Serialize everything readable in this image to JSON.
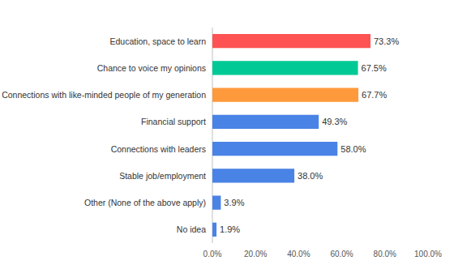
{
  "chart_data": {
    "type": "bar",
    "orientation": "horizontal",
    "categories": [
      "Education, space to learn",
      "Chance to voice my opinions",
      "Connections with like-minded people of my generation",
      "Financial support",
      "Connections with leaders",
      "Stable job/employment",
      "Other (None of the above apply)",
      "No idea"
    ],
    "values": [
      73.3,
      67.5,
      67.7,
      49.3,
      58.0,
      38.0,
      3.9,
      1.9
    ],
    "value_labels": [
      "73.3%",
      "67.5%",
      "67.7%",
      "49.3%",
      "58.0%",
      "38.0%",
      "3.9%",
      "1.9%"
    ],
    "colors": [
      "#ff5252",
      "#00c995",
      "#ff9a3c",
      "#4a83e6",
      "#4a83e6",
      "#4a83e6",
      "#4a83e6",
      "#4a83e6"
    ],
    "xlim": [
      0,
      100
    ],
    "xticks": [
      {
        "value": 0,
        "label": "0.0%"
      },
      {
        "value": 20,
        "label": "20.0%"
      },
      {
        "value": 40,
        "label": "40.0%"
      },
      {
        "value": 60,
        "label": "60.0%"
      },
      {
        "value": 80,
        "label": "80.0%"
      },
      {
        "value": 100,
        "label": "100.0%"
      }
    ],
    "grid": false,
    "data_labels": true
  }
}
